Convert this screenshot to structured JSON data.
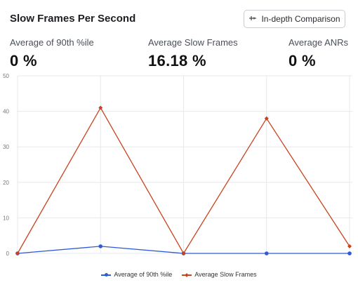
{
  "header": {
    "title": "Slow Frames Per Second",
    "comparison_button_label": "In-depth Comparison"
  },
  "metrics": [
    {
      "label": "Average of 90th %ile",
      "value": "0 %"
    },
    {
      "label": "Average Slow Frames",
      "value": "16.18 %"
    },
    {
      "label": "Average ANRs",
      "value": "0 %"
    }
  ],
  "chart_data": {
    "type": "line",
    "x": [
      1,
      2,
      3,
      4,
      5
    ],
    "ylim": [
      0,
      50
    ],
    "yticks": [
      0,
      10,
      20,
      30,
      40,
      50
    ],
    "grid": true,
    "legend_placement": "bottom",
    "series": [
      {
        "name": "Average of 90th %ile",
        "color": "#2f5bd8",
        "marker": "circle",
        "values": [
          0,
          2,
          0,
          0,
          0
        ]
      },
      {
        "name": "Average Slow Frames",
        "color": "#c8431f",
        "marker": "diamond",
        "values": [
          0,
          41,
          0,
          38,
          2
        ]
      }
    ]
  }
}
